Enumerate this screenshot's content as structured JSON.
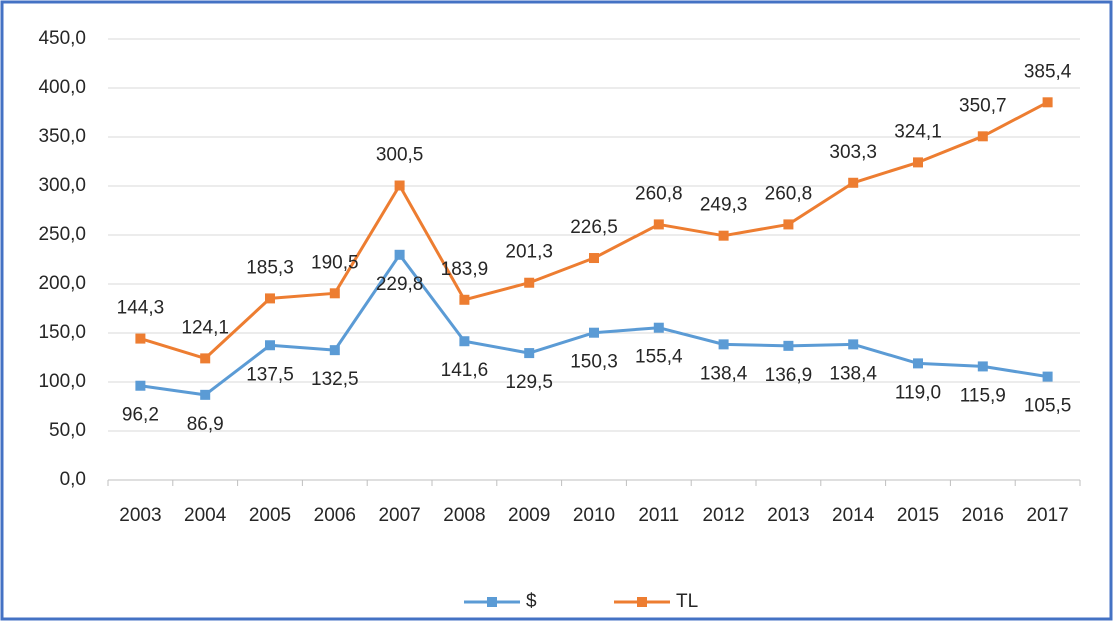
{
  "chart_data": {
    "type": "line",
    "categories": [
      "2003",
      "2004",
      "2005",
      "2006",
      "2007",
      "2008",
      "2009",
      "2010",
      "2011",
      "2012",
      "2013",
      "2014",
      "2015",
      "2016",
      "2017"
    ],
    "series": [
      {
        "name": "$",
        "color": "#5b9bd5",
        "values": [
          96.2,
          86.9,
          137.5,
          132.5,
          229.8,
          141.6,
          129.5,
          150.3,
          155.4,
          138.4,
          136.9,
          138.4,
          119.0,
          115.9,
          105.5
        ],
        "value_labels": [
          "96,2",
          "86,9",
          "137,5",
          "132,5",
          "229,8",
          "141,6",
          "129,5",
          "150,3",
          "155,4",
          "138,4",
          "136,9",
          "138,4",
          "119,0",
          "115,9",
          "105,5"
        ]
      },
      {
        "name": "TL",
        "color": "#ed7d31",
        "values": [
          144.3,
          124.1,
          185.3,
          190.5,
          300.5,
          183.9,
          201.3,
          226.5,
          260.8,
          249.3,
          260.8,
          303.3,
          324.1,
          350.7,
          385.4
        ],
        "value_labels": [
          "144,3",
          "124,1",
          "185,3",
          "190,5",
          "300,5",
          "183,9",
          "201,3",
          "226,5",
          "260,8",
          "249,3",
          "260,8",
          "303,3",
          "324,1",
          "350,7",
          "385,4"
        ]
      }
    ],
    "ylim": [
      0,
      450
    ],
    "yticks": [
      {
        "value": 0,
        "label": "0,0"
      },
      {
        "value": 50,
        "label": "50,0"
      },
      {
        "value": 100,
        "label": "100,0"
      },
      {
        "value": 150,
        "label": "150,0"
      },
      {
        "value": 200,
        "label": "200,0"
      },
      {
        "value": 250,
        "label": "250,0"
      },
      {
        "value": 300,
        "label": "300,0"
      },
      {
        "value": 350,
        "label": "350,0"
      },
      {
        "value": 400,
        "label": "400,0"
      },
      {
        "value": 450,
        "label": "450,0"
      }
    ],
    "grid": true,
    "legend": "bottom"
  }
}
